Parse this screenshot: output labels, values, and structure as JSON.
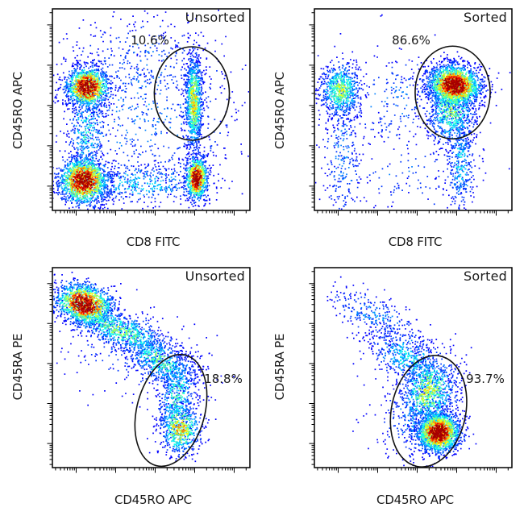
{
  "figure": {
    "background": "#ffffff",
    "text_color": "#1a1a1a",
    "frame_color": "#000000",
    "gate_stroke": "#111111",
    "dot_sparse_color": "#0000ee",
    "dot_peak_color": "#bd0000"
  },
  "chart_data": {
    "type": "scatter",
    "subtype": "flow-cytometry-density-dot-plots",
    "x_scale": "logicle",
    "y_scale": "logicle",
    "grid": false,
    "legend": null,
    "panels": [
      {
        "id": "top-left",
        "title": "Unsorted",
        "xlabel": "CD8 FITC",
        "ylabel": "CD45RO APC",
        "gate": {
          "percent": "10.6%",
          "cx": 0.706,
          "cy": 0.42,
          "rx": 0.19,
          "ry": 0.232,
          "rot": 0
        },
        "clusters": [
          {
            "cx": 0.175,
            "cy": 0.385,
            "sx": 0.055,
            "sy": 0.05,
            "n": 1300,
            "peak": 1.0,
            "rot": 0
          },
          {
            "cx": 0.155,
            "cy": 0.85,
            "sx": 0.062,
            "sy": 0.058,
            "n": 1700,
            "peak": 1.0,
            "rot": 0
          },
          {
            "cx": 0.727,
            "cy": 0.836,
            "sx": 0.028,
            "sy": 0.055,
            "n": 900,
            "peak": 1.0,
            "rot": 0
          },
          {
            "cx": 0.713,
            "cy": 0.46,
            "sx": 0.022,
            "sy": 0.12,
            "n": 1000,
            "peak": 0.55,
            "rot": 0
          },
          {
            "cx": 0.17,
            "cy": 0.6,
            "sx": 0.05,
            "sy": 0.14,
            "n": 400,
            "peak": 0.3,
            "rot": 0
          },
          {
            "cx": 0.45,
            "cy": 0.86,
            "sx": 0.18,
            "sy": 0.05,
            "n": 420,
            "peak": 0.28,
            "rot": 0
          },
          {
            "cx": 0.45,
            "cy": 0.52,
            "sx": 0.26,
            "sy": 0.24,
            "n": 800,
            "peak": 0.16,
            "rot": 0
          },
          {
            "cx": 0.44,
            "cy": 0.25,
            "sx": 0.2,
            "sy": 0.12,
            "n": 220,
            "peak": 0.14,
            "rot": 0
          }
        ]
      },
      {
        "id": "top-right",
        "title": "Sorted",
        "xlabel": "CD8 FITC",
        "ylabel": "CD45RO APC",
        "gate": {
          "percent": "86.6%",
          "cx": 0.7,
          "cy": 0.415,
          "rx": 0.19,
          "ry": 0.23,
          "rot": 0
        },
        "clusters": [
          {
            "cx": 0.705,
            "cy": 0.375,
            "sx": 0.068,
            "sy": 0.05,
            "n": 2100,
            "peak": 1.0,
            "rot": 8
          },
          {
            "cx": 0.69,
            "cy": 0.5,
            "sx": 0.065,
            "sy": 0.09,
            "n": 800,
            "peak": 0.42,
            "rot": 0
          },
          {
            "cx": 0.735,
            "cy": 0.76,
            "sx": 0.035,
            "sy": 0.13,
            "n": 380,
            "peak": 0.26,
            "rot": 0
          },
          {
            "cx": 0.13,
            "cy": 0.4,
            "sx": 0.05,
            "sy": 0.068,
            "n": 750,
            "peak": 0.48,
            "rot": 0
          },
          {
            "cx": 0.14,
            "cy": 0.75,
            "sx": 0.05,
            "sy": 0.17,
            "n": 260,
            "peak": 0.18,
            "rot": 0
          },
          {
            "cx": 0.43,
            "cy": 0.45,
            "sx": 0.2,
            "sy": 0.12,
            "n": 260,
            "peak": 0.15,
            "rot": 0
          },
          {
            "cx": 0.5,
            "cy": 0.82,
            "sx": 0.22,
            "sy": 0.1,
            "n": 130,
            "peak": 0.12,
            "rot": 0
          }
        ]
      },
      {
        "id": "bottom-left",
        "title": "Unsorted",
        "xlabel": "CD45RO APC",
        "ylabel": "CD45RA PE",
        "gate": {
          "percent": "18.8%",
          "cx": 0.6,
          "cy": 0.714,
          "rx": 0.172,
          "ry": 0.286,
          "rot": 15
        },
        "clusters": [
          {
            "cx": 0.16,
            "cy": 0.18,
            "sx": 0.075,
            "sy": 0.05,
            "n": 1500,
            "peak": 1.0,
            "rot": 18
          },
          {
            "cx": 0.34,
            "cy": 0.31,
            "sx": 0.15,
            "sy": 0.045,
            "n": 950,
            "peak": 0.42,
            "rot": 22
          },
          {
            "cx": 0.54,
            "cy": 0.46,
            "sx": 0.1,
            "sy": 0.05,
            "n": 550,
            "peak": 0.4,
            "rot": 35
          },
          {
            "cx": 0.63,
            "cy": 0.63,
            "sx": 0.045,
            "sy": 0.1,
            "n": 480,
            "peak": 0.35,
            "rot": 12
          },
          {
            "cx": 0.645,
            "cy": 0.8,
            "sx": 0.05,
            "sy": 0.065,
            "n": 650,
            "peak": 0.62,
            "rot": 0
          },
          {
            "cx": 0.42,
            "cy": 0.42,
            "sx": 0.22,
            "sy": 0.12,
            "n": 260,
            "peak": 0.13,
            "rot": 25
          }
        ]
      },
      {
        "id": "bottom-right",
        "title": "Sorted",
        "xlabel": "CD45RO APC",
        "ylabel": "CD45RA PE",
        "gate": {
          "percent": "93.7%",
          "cx": 0.578,
          "cy": 0.718,
          "rx": 0.188,
          "ry": 0.282,
          "rot": 12
        },
        "clusters": [
          {
            "cx": 0.3,
            "cy": 0.24,
            "sx": 0.14,
            "sy": 0.05,
            "n": 300,
            "peak": 0.18,
            "rot": 28
          },
          {
            "cx": 0.47,
            "cy": 0.45,
            "sx": 0.11,
            "sy": 0.06,
            "n": 520,
            "peak": 0.3,
            "rot": 30
          },
          {
            "cx": 0.575,
            "cy": 0.62,
            "sx": 0.07,
            "sy": 0.095,
            "n": 950,
            "peak": 0.5,
            "rot": 12
          },
          {
            "cx": 0.625,
            "cy": 0.82,
            "sx": 0.055,
            "sy": 0.05,
            "n": 1900,
            "peak": 1.0,
            "rot": 0
          },
          {
            "cx": 0.52,
            "cy": 0.74,
            "sx": 0.1,
            "sy": 0.12,
            "n": 320,
            "peak": 0.18,
            "rot": 10
          }
        ]
      }
    ]
  }
}
